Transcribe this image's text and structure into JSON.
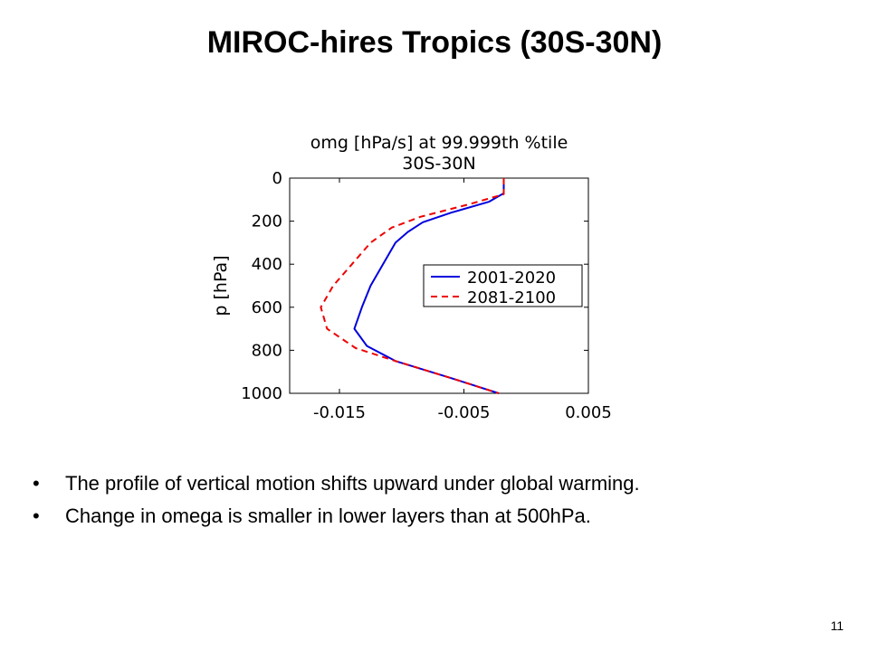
{
  "slide": {
    "title": "MIROC-hires Tropics (30S-30N)",
    "bullets": [
      "The profile of vertical motion shifts upward under global warming.",
      "Change in omega is smaller in lower layers than at 500hPa."
    ],
    "bullet_symbol": "•",
    "page_number": "11"
  },
  "chart_data": {
    "type": "line",
    "title": "omg [hPa/s] at  99.999th %tile",
    "subtitle": "30S-30N",
    "xlabel": "",
    "ylabel": "p [hPa]",
    "xlim": [
      -0.019,
      0.005
    ],
    "ylim": [
      0,
      1000
    ],
    "y_inverted": true,
    "xticks": [
      -0.015,
      -0.005,
      0.005
    ],
    "xtick_labels": [
      "-0.015",
      "-0.005",
      "0.005"
    ],
    "yticks": [
      0,
      200,
      400,
      600,
      800,
      1000
    ],
    "ytick_labels": [
      "0",
      "200",
      "400",
      "600",
      "800",
      "1000"
    ],
    "grid": false,
    "legend_position": "right-center",
    "series": [
      {
        "name": "2001-2020",
        "color": "#0000dd",
        "dash": "solid",
        "points": [
          {
            "x": -0.0018,
            "y": 0
          },
          {
            "x": -0.0018,
            "y": 70
          },
          {
            "x": -0.003,
            "y": 110
          },
          {
            "x": -0.006,
            "y": 160
          },
          {
            "x": -0.0083,
            "y": 205
          },
          {
            "x": -0.0095,
            "y": 250
          },
          {
            "x": -0.0105,
            "y": 300
          },
          {
            "x": -0.0115,
            "y": 400
          },
          {
            "x": -0.0125,
            "y": 500
          },
          {
            "x": -0.0132,
            "y": 600
          },
          {
            "x": -0.0138,
            "y": 700
          },
          {
            "x": -0.0128,
            "y": 780
          },
          {
            "x": -0.0105,
            "y": 850
          },
          {
            "x": -0.006,
            "y": 930
          },
          {
            "x": -0.0022,
            "y": 1000
          }
        ]
      },
      {
        "name": "2081-2100",
        "color": "#ee0000",
        "dash": "dashed",
        "points": [
          {
            "x": -0.0018,
            "y": 0
          },
          {
            "x": -0.0018,
            "y": 75
          },
          {
            "x": -0.0045,
            "y": 120
          },
          {
            "x": -0.0085,
            "y": 180
          },
          {
            "x": -0.0108,
            "y": 230
          },
          {
            "x": -0.0125,
            "y": 300
          },
          {
            "x": -0.014,
            "y": 400
          },
          {
            "x": -0.0155,
            "y": 500
          },
          {
            "x": -0.0165,
            "y": 600
          },
          {
            "x": -0.016,
            "y": 700
          },
          {
            "x": -0.0137,
            "y": 790
          },
          {
            "x": -0.0105,
            "y": 850
          },
          {
            "x": -0.006,
            "y": 930
          },
          {
            "x": -0.0022,
            "y": 1000
          }
        ]
      }
    ]
  }
}
